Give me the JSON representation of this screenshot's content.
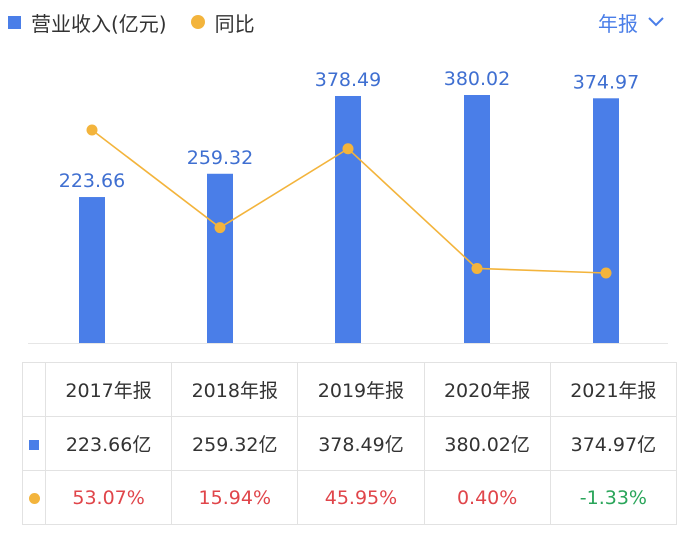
{
  "legend": {
    "revenue": "营业收入(亿元)",
    "yoy": "同比"
  },
  "period_selector": {
    "label": "年报"
  },
  "colors": {
    "bar": "#4a7ee8",
    "line": "#f3b43c",
    "positive": "#e0454a",
    "negative": "#2aa55a",
    "label": "#3f6fd1"
  },
  "chart_data": {
    "type": "bar",
    "categories": [
      "2017年报",
      "2018年报",
      "2019年报",
      "2020年报",
      "2021年报"
    ],
    "series": [
      {
        "name": "营业收入(亿元)",
        "type": "bar",
        "values": [
          223.66,
          259.32,
          378.49,
          380.02,
          374.97
        ]
      },
      {
        "name": "同比",
        "type": "line",
        "values": [
          53.07,
          15.94,
          45.95,
          0.4,
          -1.33
        ]
      }
    ],
    "ylim": [
      0,
      380.02
    ],
    "yoy_range": [
      -1.33,
      53.07
    ],
    "bar_labels": [
      "223.66",
      "259.32",
      "378.49",
      "380.02",
      "374.97"
    ]
  },
  "table": {
    "headers": [
      "2017年报",
      "2018年报",
      "2019年报",
      "2020年报",
      "2021年报"
    ],
    "revenue_row": [
      "223.66亿",
      "259.32亿",
      "378.49亿",
      "380.02亿",
      "374.97亿"
    ],
    "yoy_row": [
      "53.07%",
      "15.94%",
      "45.95%",
      "0.40%",
      "-1.33%"
    ]
  }
}
